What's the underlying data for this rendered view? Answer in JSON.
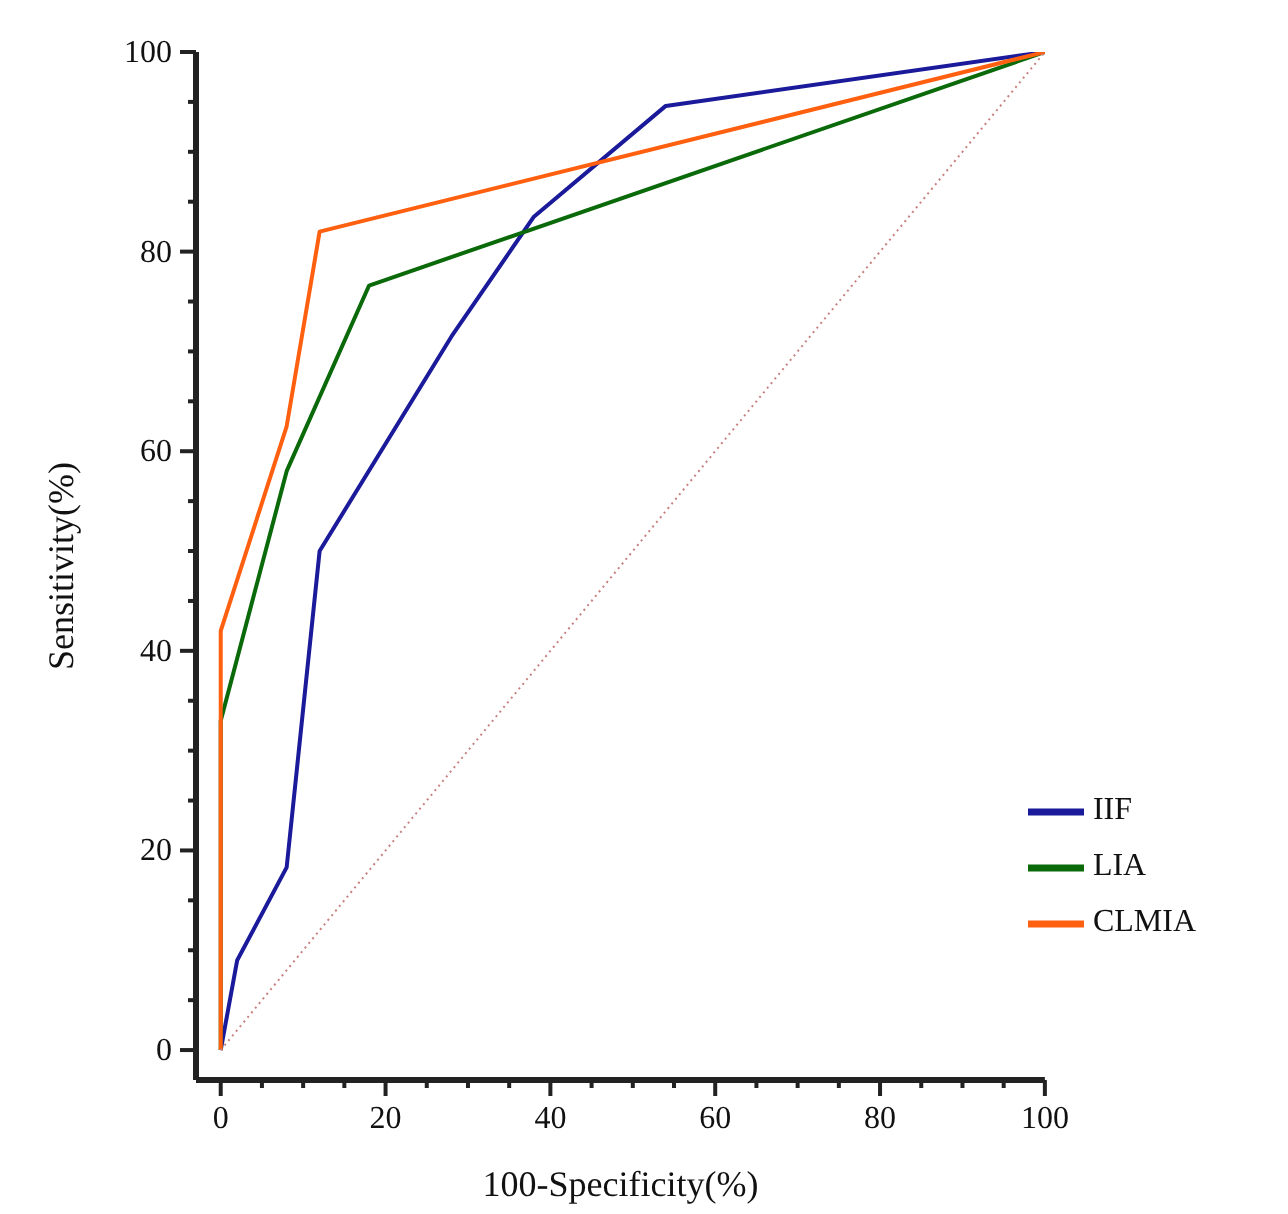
{
  "chart_data": {
    "type": "line",
    "xlabel": "100-Specificity(%)",
    "ylabel": "Sensitivity(%)",
    "xlim": [
      -3,
      100
    ],
    "ylim": [
      -3,
      100
    ],
    "xticks": [
      0,
      {
        "value": 5,
        "label": null
      },
      {
        "value": 10,
        "label": null
      },
      {
        "value": 15,
        "label": null
      },
      20,
      {
        "value": 25,
        "label": null
      },
      {
        "value": 30,
        "label": null
      },
      {
        "value": 35,
        "label": null
      },
      40,
      {
        "value": 45,
        "label": null
      },
      {
        "value": 50,
        "label": null
      },
      {
        "value": 55,
        "label": null
      },
      60,
      {
        "value": 65,
        "label": null
      },
      {
        "value": 70,
        "label": null
      },
      {
        "value": 75,
        "label": null
      },
      80,
      {
        "value": 85,
        "label": null
      },
      {
        "value": 90,
        "label": null
      },
      {
        "value": 95,
        "label": null
      },
      100
    ],
    "yticks": [
      0,
      {
        "value": 5,
        "label": null
      },
      {
        "value": 10,
        "label": null
      },
      {
        "value": 15,
        "label": null
      },
      20,
      {
        "value": 25,
        "label": null
      },
      {
        "value": 30,
        "label": null
      },
      {
        "value": 35,
        "label": null
      },
      40,
      {
        "value": 45,
        "label": null
      },
      {
        "value": 50,
        "label": null
      },
      {
        "value": 55,
        "label": null
      },
      60,
      {
        "value": 65,
        "label": null
      },
      {
        "value": 70,
        "label": null
      },
      {
        "value": 75,
        "label": null
      },
      80,
      {
        "value": 85,
        "label": null
      },
      {
        "value": 90,
        "label": null
      },
      {
        "value": 95,
        "label": null
      },
      100
    ],
    "grid": false,
    "legend": "bottom right",
    "marker": "none",
    "series": [
      {
        "name": "IIF",
        "color": "#1a1a9a",
        "x": [
          0,
          2,
          8,
          12,
          28,
          38,
          54,
          100
        ],
        "values": [
          0,
          9,
          18.3,
          50,
          71.5,
          83.5,
          94.6,
          100
        ]
      },
      {
        "name": "LIA",
        "color": "#0a6a0a",
        "x": [
          0,
          0,
          8,
          18,
          100
        ],
        "values": [
          0,
          33,
          58,
          76.6,
          100
        ]
      },
      {
        "name": "CLMIA",
        "color": "#ff6010",
        "x": [
          0,
          0,
          8,
          12,
          100
        ],
        "values": [
          0,
          42,
          62.5,
          82,
          100
        ]
      },
      {
        "color": "#c88080",
        "line_style": "dotted",
        "x": [
          0,
          100
        ],
        "values": [
          0,
          100
        ]
      }
    ]
  }
}
